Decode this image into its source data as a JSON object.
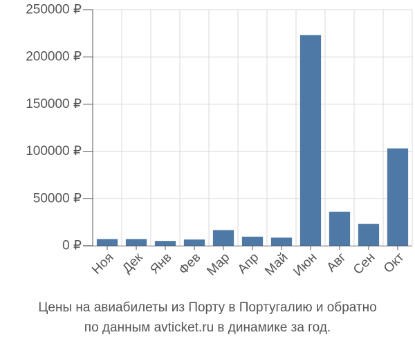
{
  "chart_data": {
    "type": "bar",
    "categories": [
      "Ноя",
      "Дек",
      "Янв",
      "Фев",
      "Мар",
      "Апр",
      "Май",
      "Июн",
      "Авг",
      "Сен",
      "Окт"
    ],
    "values": [
      7000,
      7000,
      5000,
      6500,
      16500,
      9500,
      8500,
      223000,
      36000,
      23000,
      103000
    ],
    "y_ticks": [
      "0 ₽",
      "50000 ₽",
      "100000 ₽",
      "150000 ₽",
      "200000 ₽",
      "250000 ₽"
    ],
    "ylim": [
      0,
      250000
    ],
    "tick_step": 50000,
    "grid": true,
    "bar_color": "#4e78a6",
    "axis_color": "#555555",
    "grid_color": "#d9d9d9"
  },
  "caption": {
    "line1": "Цены на авиабилеты из Порту в Португалию и обратно",
    "line2": "по данным avticket.ru в динамике за год."
  }
}
